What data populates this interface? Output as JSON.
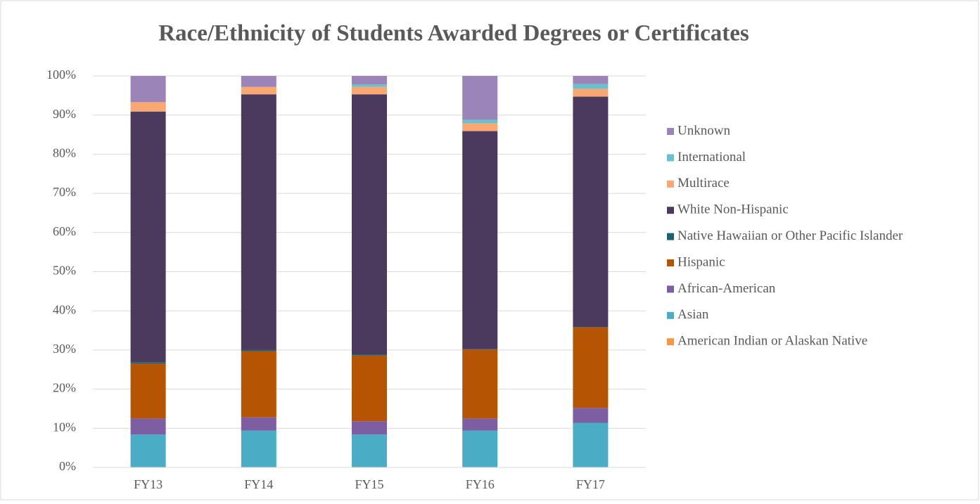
{
  "chart_data": {
    "type": "stacked_bar",
    "title": "Race/Ethnicity of Students Awarded Degrees or Certificates",
    "categories": [
      "FY13",
      "FY14",
      "FY15",
      "FY16",
      "FY17"
    ],
    "series": [
      {
        "name": "American Indian or Alaskan Native",
        "color": "#f79646",
        "values": [
          0.1,
          0.1,
          0.1,
          0.1,
          0.1
        ]
      },
      {
        "name": "Asian",
        "color": "#4bacc6",
        "values": [
          8.3,
          9.3,
          8.3,
          9.3,
          11.3
        ]
      },
      {
        "name": "African-American",
        "color": "#7d5ea3",
        "values": [
          4.1,
          3.4,
          3.4,
          3.1,
          3.8
        ]
      },
      {
        "name": "Hispanic",
        "color": "#b55504",
        "values": [
          14.0,
          16.9,
          16.8,
          17.6,
          20.6
        ]
      },
      {
        "name": "Native Hawaiian or Other Pacific Islander",
        "color": "#1d6070",
        "values": [
          0.4,
          0.3,
          0.3,
          0.1,
          0.1
        ]
      },
      {
        "name": "White Non-Hispanic",
        "color": "#4b3a5e",
        "values": [
          64.0,
          65.3,
          66.4,
          55.7,
          58.8
        ]
      },
      {
        "name": "Multirace",
        "color": "#f8a870",
        "values": [
          2.4,
          1.9,
          1.9,
          2.0,
          2.0
        ]
      },
      {
        "name": "International",
        "color": "#67c1cf",
        "values": [
          0,
          0,
          0.6,
          0.9,
          1.2
        ]
      },
      {
        "name": "Unknown",
        "color": "#9b84b8",
        "values": [
          6.7,
          2.8,
          2.2,
          11.2,
          2.1
        ]
      }
    ],
    "ylim": [
      0,
      100
    ],
    "yticks": [
      {
        "value": 0,
        "label": "0%"
      },
      {
        "value": 10,
        "label": "10%"
      },
      {
        "value": 20,
        "label": "20%"
      },
      {
        "value": 30,
        "label": "30%"
      },
      {
        "value": 40,
        "label": "40%"
      },
      {
        "value": 50,
        "label": "50%"
      },
      {
        "value": 60,
        "label": "60%"
      },
      {
        "value": 70,
        "label": "70%"
      },
      {
        "value": 80,
        "label": "80%"
      },
      {
        "value": 90,
        "label": "90%"
      },
      {
        "value": 100,
        "label": "100%"
      }
    ],
    "grid": true,
    "legend": "right"
  }
}
